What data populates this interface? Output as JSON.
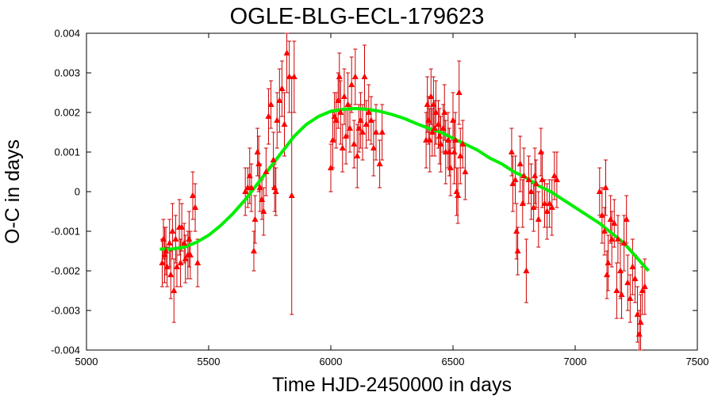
{
  "chart_data": {
    "type": "scatter",
    "title": "OGLE-BLG-ECL-179623",
    "xlabel": "Time HJD-2450000 in days",
    "ylabel": "O-C in days",
    "xlim": [
      5000,
      7500
    ],
    "ylim": [
      -0.004,
      0.004
    ],
    "x_ticks": [
      5000,
      5500,
      6000,
      6500,
      7000,
      7500
    ],
    "x_tick_labels": [
      "5000",
      "5500",
      "6000",
      "6500",
      "7000",
      "7500"
    ],
    "y_ticks": [
      -0.004,
      -0.003,
      -0.002,
      -0.001,
      0,
      0.001,
      0.002,
      0.003,
      0.004
    ],
    "y_tick_labels": [
      "-0.004",
      "-0.003",
      "-0.002",
      "-0.001",
      "0",
      "0.001",
      "0.002",
      "0.003",
      "0.004"
    ],
    "grid": false,
    "series": [
      {
        "kind": "points_with_errorbars",
        "color": "#ff0000",
        "marker": "triangle",
        "points": [
          [
            5310,
            -0.0018,
            0.0006
          ],
          [
            5315,
            -0.0012,
            0.0005
          ],
          [
            5320,
            -0.0016,
            0.0007
          ],
          [
            5325,
            -0.0015,
            0.0006
          ],
          [
            5330,
            -0.0019,
            0.0005
          ],
          [
            5340,
            -0.0013,
            0.0006
          ],
          [
            5345,
            -0.0021,
            0.0006
          ],
          [
            5352,
            -0.001,
            0.0007
          ],
          [
            5358,
            -0.0025,
            0.0008
          ],
          [
            5365,
            -0.0012,
            0.0006
          ],
          [
            5370,
            -0.0019,
            0.0005
          ],
          [
            5380,
            -0.0009,
            0.0007
          ],
          [
            5385,
            -0.0018,
            0.0006
          ],
          [
            5390,
            -0.0009,
            0.0006
          ],
          [
            5400,
            -0.0013,
            0.0005
          ],
          [
            5405,
            -0.0017,
            0.0006
          ],
          [
            5415,
            -0.0016,
            0.0006
          ],
          [
            5420,
            -0.0012,
            0.0007
          ],
          [
            5425,
            -0.0016,
            0.0006
          ],
          [
            5435,
            -0.0001,
            0.0006
          ],
          [
            5445,
            -0.0004,
            0.0006
          ],
          [
            5455,
            -0.0018,
            0.0006
          ],
          [
            5650,
            0.0,
            0.0006
          ],
          [
            5660,
            0.0001,
            0.0005
          ],
          [
            5668,
            0.0004,
            0.0007
          ],
          [
            5675,
            0.0001,
            0.0006
          ],
          [
            5685,
            -0.0015,
            0.0005
          ],
          [
            5690,
            -0.0007,
            0.0006
          ],
          [
            5700,
            0.001,
            0.0006
          ],
          [
            5705,
            0.0007,
            0.0007
          ],
          [
            5710,
            0.0001,
            0.0006
          ],
          [
            5718,
            -0.0002,
            0.0005
          ],
          [
            5725,
            -0.0005,
            0.0006
          ],
          [
            5735,
            0.0005,
            0.0006
          ],
          [
            5745,
            0.0019,
            0.0007
          ],
          [
            5755,
            0.0022,
            0.0006
          ],
          [
            5765,
            0.0008,
            0.0007
          ],
          [
            5770,
            0.0001,
            0.0006
          ],
          [
            5775,
            0.0,
            0.0006
          ],
          [
            5780,
            0.0018,
            0.0007
          ],
          [
            5790,
            0.0023,
            0.0008
          ],
          [
            5800,
            0.0026,
            0.0007
          ],
          [
            5810,
            0.0017,
            0.0008
          ],
          [
            5820,
            0.0035,
            0.001
          ],
          [
            5830,
            0.0029,
            0.0009
          ],
          [
            5840,
            -0.0001,
            0.003
          ],
          [
            5850,
            0.0029,
            0.0009
          ],
          [
            6000,
            0.0006,
            0.0006
          ],
          [
            6008,
            0.0013,
            0.0007
          ],
          [
            6015,
            0.0019,
            0.0006
          ],
          [
            6022,
            0.0018,
            0.0007
          ],
          [
            6030,
            0.0023,
            0.0007
          ],
          [
            6035,
            0.0029,
            0.0006
          ],
          [
            6040,
            0.002,
            0.0008
          ],
          [
            6048,
            0.0011,
            0.0006
          ],
          [
            6055,
            0.0024,
            0.0007
          ],
          [
            6062,
            0.0014,
            0.0007
          ],
          [
            6070,
            0.0022,
            0.0008
          ],
          [
            6078,
            0.0016,
            0.0006
          ],
          [
            6085,
            0.0027,
            0.0007
          ],
          [
            6095,
            0.0012,
            0.0006
          ],
          [
            6100,
            0.0029,
            0.0007
          ],
          [
            6108,
            0.0009,
            0.0008
          ],
          [
            6115,
            0.0016,
            0.0006
          ],
          [
            6122,
            0.0018,
            0.0007
          ],
          [
            6130,
            0.0015,
            0.0007
          ],
          [
            6138,
            0.0029,
            0.0008
          ],
          [
            6145,
            0.0017,
            0.0006
          ],
          [
            6155,
            0.002,
            0.0007
          ],
          [
            6165,
            0.0018,
            0.0006
          ],
          [
            6175,
            0.0011,
            0.0007
          ],
          [
            6185,
            0.0015,
            0.0007
          ],
          [
            6200,
            0.0007,
            0.0006
          ],
          [
            6210,
            0.0015,
            0.0007
          ],
          [
            6390,
            0.0013,
            0.0007
          ],
          [
            6395,
            0.0022,
            0.0007
          ],
          [
            6400,
            0.0018,
            0.0006
          ],
          [
            6405,
            0.0013,
            0.0008
          ],
          [
            6410,
            0.0024,
            0.0007
          ],
          [
            6415,
            0.0015,
            0.0006
          ],
          [
            6420,
            0.0022,
            0.0007
          ],
          [
            6425,
            0.0016,
            0.0007
          ],
          [
            6430,
            0.002,
            0.0008
          ],
          [
            6440,
            0.0017,
            0.0006
          ],
          [
            6445,
            0.0014,
            0.0007
          ],
          [
            6450,
            0.0012,
            0.0007
          ],
          [
            6460,
            0.0016,
            0.0006
          ],
          [
            6465,
            0.002,
            0.0007
          ],
          [
            6470,
            0.001,
            0.0008
          ],
          [
            6480,
            0.0013,
            0.0007
          ],
          [
            6485,
            0.001,
            0.0006
          ],
          [
            6490,
            0.0006,
            0.0007
          ],
          [
            6500,
            0.0018,
            0.0007
          ],
          [
            6505,
            0.001,
            0.0008
          ],
          [
            6510,
            0.0013,
            0.0007
          ],
          [
            6515,
            0.0,
            0.0006
          ],
          [
            6520,
            -0.0001,
            0.0007
          ],
          [
            6525,
            0.0025,
            0.0008
          ],
          [
            6530,
            0.0009,
            0.0007
          ],
          [
            6540,
            0.0012,
            0.0006
          ],
          [
            6550,
            0.0005,
            0.0007
          ],
          [
            6740,
            0.001,
            0.0006
          ],
          [
            6745,
            0.0002,
            0.0007
          ],
          [
            6755,
            0.0003,
            0.0006
          ],
          [
            6760,
            -0.001,
            0.0007
          ],
          [
            6765,
            -0.0015,
            0.0006
          ],
          [
            6775,
            0.0007,
            0.0007
          ],
          [
            6785,
            -0.0003,
            0.0006
          ],
          [
            6790,
            0.0004,
            0.0007
          ],
          [
            6800,
            -0.002,
            0.0008
          ],
          [
            6810,
            0.0003,
            0.0006
          ],
          [
            6820,
            0.0,
            0.0007
          ],
          [
            6830,
            -0.0004,
            0.0006
          ],
          [
            6835,
            0.0004,
            0.0007
          ],
          [
            6840,
            0.0002,
            0.0006
          ],
          [
            6850,
            -0.0007,
            0.0007
          ],
          [
            6860,
            0.001,
            0.0006
          ],
          [
            6865,
            0.0003,
            0.0007
          ],
          [
            6875,
            -0.0003,
            0.0006
          ],
          [
            6885,
            -0.0005,
            0.0007
          ],
          [
            6895,
            -0.0003,
            0.0006
          ],
          [
            6905,
            -0.0004,
            0.0007
          ],
          [
            6915,
            0.0004,
            0.0006
          ],
          [
            6925,
            0.0003,
            0.0007
          ],
          [
            7100,
            0.0,
            0.0006
          ],
          [
            7110,
            -0.0006,
            0.0007
          ],
          [
            7120,
            -0.001,
            0.0006
          ],
          [
            7125,
            0.0001,
            0.0007
          ],
          [
            7130,
            -0.0021,
            0.0006
          ],
          [
            7135,
            -0.0018,
            0.0007
          ],
          [
            7145,
            -0.0007,
            0.0006
          ],
          [
            7150,
            -0.0012,
            0.0007
          ],
          [
            7160,
            -0.0008,
            0.0006
          ],
          [
            7170,
            -0.0025,
            0.0007
          ],
          [
            7175,
            -0.0012,
            0.0006
          ],
          [
            7185,
            -0.002,
            0.0007
          ],
          [
            7190,
            -0.0026,
            0.0006
          ],
          [
            7200,
            -0.0013,
            0.0007
          ],
          [
            7210,
            -0.0007,
            0.0006
          ],
          [
            7215,
            -0.0023,
            0.0007
          ],
          [
            7225,
            -0.0027,
            0.0006
          ],
          [
            7235,
            -0.0019,
            0.0007
          ],
          [
            7245,
            -0.0022,
            0.0006
          ],
          [
            7255,
            -0.0031,
            0.0007
          ],
          [
            7262,
            -0.0036,
            0.0006
          ],
          [
            7268,
            -0.0033,
            0.0007
          ],
          [
            7275,
            -0.0025,
            0.0006
          ],
          [
            7285,
            -0.0024,
            0.0007
          ]
        ]
      },
      {
        "kind": "fit_line",
        "color": "#00ee00",
        "x": [
          5300,
          5350,
          5400,
          5450,
          5500,
          5550,
          5600,
          5650,
          5700,
          5750,
          5800,
          5850,
          5900,
          5950,
          6000,
          6050,
          6100,
          6150,
          6200,
          6250,
          6300,
          6350,
          6400,
          6450,
          6500,
          6550,
          6600,
          6650,
          6700,
          6750,
          6800,
          6850,
          6900,
          6950,
          7000,
          7050,
          7100,
          7150,
          7200,
          7250,
          7300
        ],
        "y": [
          -0.00145,
          -0.00145,
          -0.0014,
          -0.00128,
          -0.0011,
          -0.00085,
          -0.00055,
          -0.0002,
          0.0002,
          0.0006,
          0.001,
          0.0014,
          0.0017,
          0.0019,
          0.00203,
          0.00208,
          0.0021,
          0.00208,
          0.00203,
          0.00195,
          0.00185,
          0.00172,
          0.0016,
          0.0015,
          0.00135,
          0.0012,
          0.00105,
          0.00085,
          0.0007,
          0.0005,
          0.00035,
          0.00015,
          0.0,
          -0.0002,
          -0.0004,
          -0.0006,
          -0.0008,
          -0.00105,
          -0.0013,
          -0.00165,
          -0.002
        ]
      }
    ]
  }
}
